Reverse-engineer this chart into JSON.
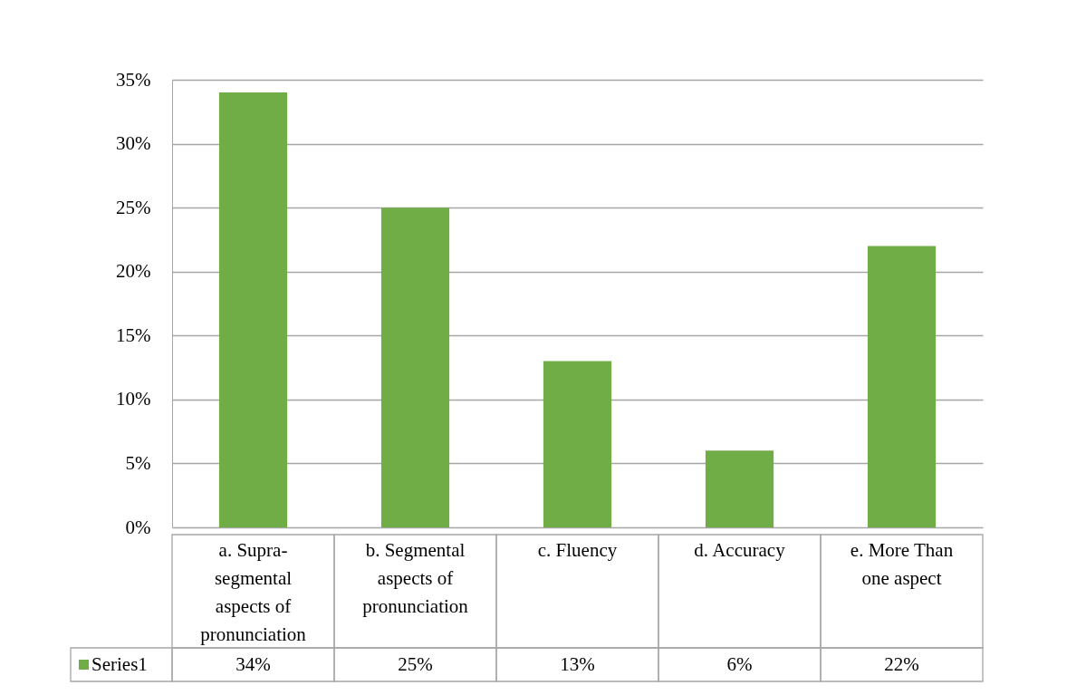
{
  "chart_data": {
    "type": "bar",
    "categories": [
      "a. Supra-segmental aspects of pronunciation",
      "b. Segmental aspects of pronunciation",
      "c. Fluency",
      "d. Accuracy",
      "e. More Than one aspect"
    ],
    "series": [
      {
        "name": "Series1",
        "color": "#70ad47",
        "values": [
          34,
          25,
          13,
          6,
          22
        ],
        "value_labels": [
          "34%",
          "25%",
          "13%",
          "6%",
          "22%"
        ]
      }
    ],
    "ylim": [
      0,
      35
    ],
    "yticks": [
      {
        "value": 0,
        "label": "0%"
      },
      {
        "value": 5,
        "label": "5%"
      },
      {
        "value": 10,
        "label": "10%"
      },
      {
        "value": 15,
        "label": "15%"
      },
      {
        "value": 20,
        "label": "20%"
      },
      {
        "value": 25,
        "label": "25%"
      },
      {
        "value": 30,
        "label": "30%"
      },
      {
        "value": 35,
        "label": "35%"
      }
    ],
    "grid": "y",
    "legend": "bottom"
  }
}
